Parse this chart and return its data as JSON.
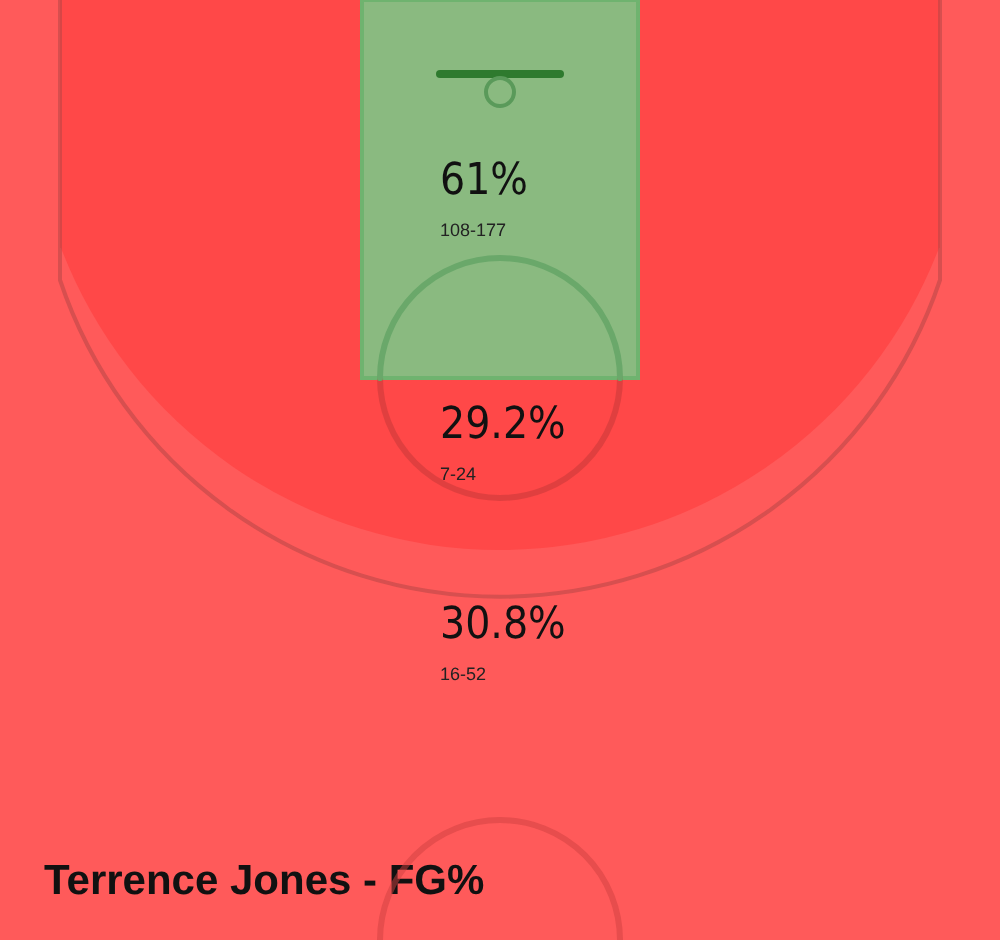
{
  "chart_data": {
    "type": "other",
    "title": "Terrence Jones - FG%",
    "categories": [
      null,
      null,
      null
    ],
    "values": [
      61,
      29.2,
      30.8
    ],
    "value_labels": [
      "61%",
      "29.2%",
      "30.8%"
    ],
    "annotations": [
      "108-177",
      "7-24",
      "16-52"
    ],
    "colors": [
      "#84c184",
      "#ff4848",
      "#ff5a5a"
    ]
  }
}
